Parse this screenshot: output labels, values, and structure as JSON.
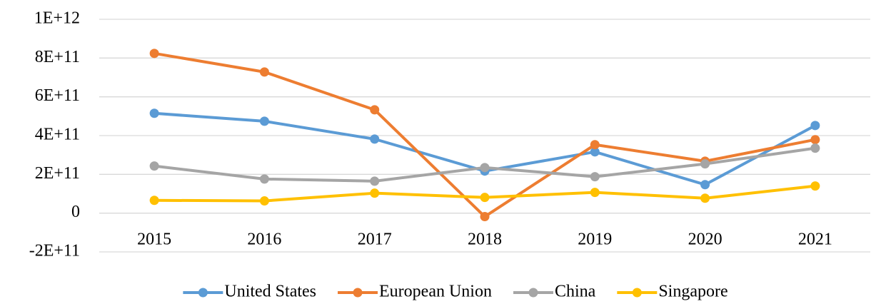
{
  "chart_data": {
    "type": "line",
    "categories": [
      "2015",
      "2016",
      "2017",
      "2018",
      "2019",
      "2020",
      "2021"
    ],
    "series": [
      {
        "name": "United States",
        "color": "#5b9bd5",
        "values": [
          515000000000,
          474000000000,
          382000000000,
          217000000000,
          316000000000,
          147000000000,
          452000000000
        ]
      },
      {
        "name": "European Union",
        "color": "#ed7d31",
        "values": [
          824000000000,
          728000000000,
          533000000000,
          -18000000000,
          353000000000,
          268000000000,
          379000000000
        ]
      },
      {
        "name": "China",
        "color": "#a5a5a5",
        "values": [
          243000000000,
          176000000000,
          165000000000,
          235000000000,
          188000000000,
          254000000000,
          335000000000
        ]
      },
      {
        "name": "Singapore",
        "color": "#ffc000",
        "values": [
          66000000000,
          63000000000,
          103000000000,
          81000000000,
          107000000000,
          77000000000,
          140000000000
        ]
      }
    ],
    "ylim": [
      -200000000000,
      1000000000000
    ],
    "yticks": [
      {
        "value": -200000000000,
        "label": "-2E+11"
      },
      0,
      {
        "value": 200000000000,
        "label": "2E+11"
      },
      {
        "value": 400000000000,
        "label": "4E+11"
      },
      {
        "value": 600000000000,
        "label": "6E+11"
      },
      {
        "value": 800000000000,
        "label": "8E+11"
      },
      {
        "value": 1000000000000,
        "label": "1E+12"
      }
    ],
    "grid": true,
    "legend": "bottom"
  }
}
